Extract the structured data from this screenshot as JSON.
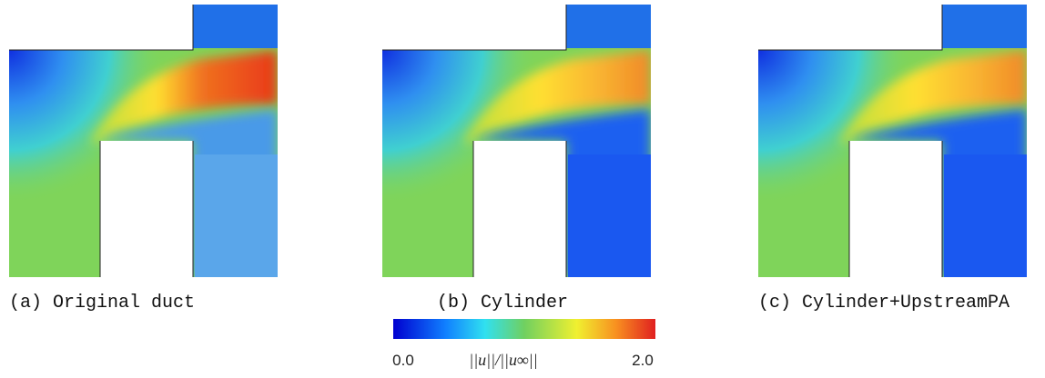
{
  "panels": [
    {
      "caption": "(a) Original duct"
    },
    {
      "caption": "(b) Cylinder"
    },
    {
      "caption": "(c) Cylinder+UpstreamPA"
    }
  ],
  "colorbar": {
    "min_label": "0.0",
    "title": "||u||/||u∞||",
    "max_label": "2.0"
  }
}
